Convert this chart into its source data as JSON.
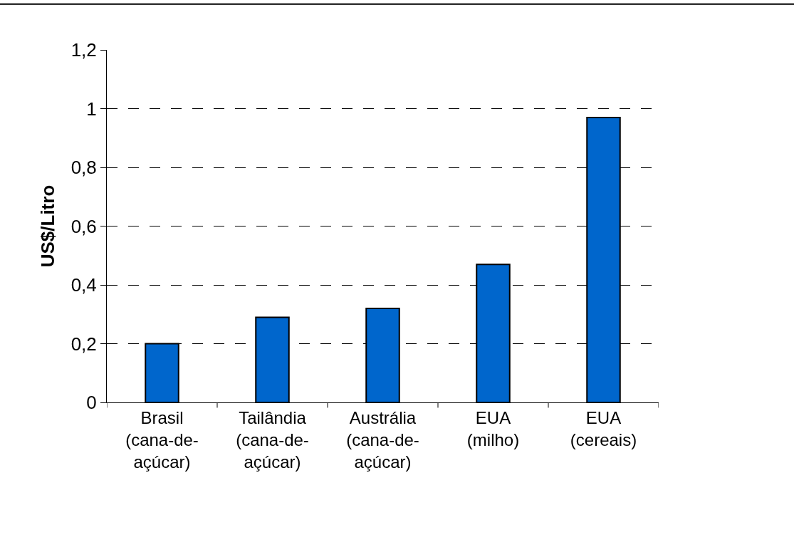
{
  "chart_data": {
    "type": "bar",
    "ylabel": "US$/Litro",
    "categories": [
      "Brasil\n(cana-de-\naçúcar)",
      "Tailândia\n(cana-de-\naçúcar)",
      "Austrália\n(cana-de-\naçúcar)",
      "EUA\n(milho)",
      "EUA\n(cereais)"
    ],
    "values": [
      0.2,
      0.29,
      0.32,
      0.47,
      0.97
    ],
    "color": "#0066cc",
    "ylim": [
      0,
      1.2
    ],
    "yticks": [
      {
        "value": 0,
        "label": "0"
      },
      {
        "value": 0.2,
        "label": "0,2"
      },
      {
        "value": 0.4,
        "label": "0,4"
      },
      {
        "value": 0.6,
        "label": "0,6"
      },
      {
        "value": 0.8,
        "label": "0,8"
      },
      {
        "value": 1,
        "label": "1"
      },
      {
        "value": 1.2,
        "label": "1,2"
      }
    ],
    "grid": "y",
    "legend": false
  }
}
